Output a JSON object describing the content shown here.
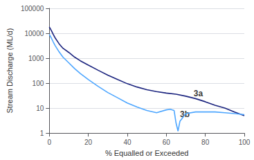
{
  "chart_data": {
    "type": "line",
    "xlabel": "% Equalled or Exceeded",
    "ylabel": "Stream Discharge (ML/d)",
    "log": "y",
    "xlim": [
      0,
      100
    ],
    "ylim": [
      1,
      100000
    ],
    "xticks": [
      0,
      20,
      40,
      60,
      80,
      100
    ],
    "yticks": [
      1,
      10,
      100,
      1000,
      10000,
      100000
    ],
    "grid": true,
    "series": [
      {
        "color": "#1a237e",
        "x": [
          0,
          1,
          2,
          3,
          5,
          7,
          10,
          13,
          16,
          20,
          25,
          30,
          35,
          40,
          45,
          50,
          55,
          60,
          65,
          70,
          75,
          80,
          85,
          90,
          95,
          100
        ],
        "values": [
          18000,
          13000,
          9000,
          6500,
          3800,
          2500,
          1700,
          1100,
          780,
          530,
          330,
          210,
          140,
          95,
          70,
          55,
          46,
          40,
          36,
          30,
          24,
          18,
          13,
          10,
          7,
          5
        ]
      },
      {
        "color": "#4da6ff",
        "x": [
          0,
          1,
          2,
          3,
          5,
          7,
          10,
          13,
          16,
          20,
          25,
          30,
          35,
          40,
          45,
          50,
          55,
          60,
          62,
          64,
          65,
          66,
          67,
          70,
          75,
          80,
          85,
          90,
          95,
          100
        ],
        "values": [
          9000,
          6500,
          4500,
          3200,
          1800,
          1100,
          650,
          380,
          240,
          140,
          75,
          42,
          26,
          16,
          11,
          8,
          6.5,
          8.5,
          9,
          8,
          2.5,
          1.2,
          3,
          6,
          7,
          7,
          7,
          6.5,
          6,
          5.5
        ]
      }
    ],
    "annotations": [
      {
        "text": "3a",
        "x": 74,
        "y": 38
      },
      {
        "text": "3b",
        "x": 67,
        "y": 5.5
      }
    ]
  }
}
